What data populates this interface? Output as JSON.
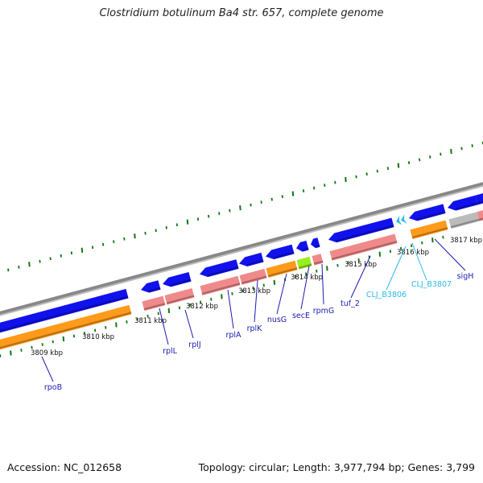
{
  "title": "Clostridium botulinum Ba4 str. 657, complete genome",
  "footer": {
    "accession": "Accession: NC_012658",
    "summary": "Topology: circular; Length: 3,977,794 bp; Genes: 3,799"
  },
  "colors": {
    "cds": "#1111ee",
    "rrna": "#f08a8a",
    "orange": "#ff9a1a",
    "green": "#99ee22",
    "gray": "#bbbbbb",
    "backbone": "#888888",
    "tick": "#117711",
    "gene_label": "#1b1bb0",
    "locus_label": "#2ab8e8"
  },
  "scale_labels": [
    "3809 kbp",
    "3810 kbp",
    "3811 kbp",
    "3812 kbp",
    "3813 kbp",
    "3814 kbp",
    "3815 kbp",
    "3816 kbp",
    "3817 kbp"
  ],
  "gene_labels": [
    {
      "text": "rpoB",
      "kind": "gene"
    },
    {
      "text": "rplL",
      "kind": "gene"
    },
    {
      "text": "rplJ",
      "kind": "gene"
    },
    {
      "text": "rplA",
      "kind": "gene"
    },
    {
      "text": "rplK",
      "kind": "gene"
    },
    {
      "text": "nusG",
      "kind": "gene"
    },
    {
      "text": "secE",
      "kind": "gene"
    },
    {
      "text": "rpmG",
      "kind": "gene"
    },
    {
      "text": "tuf_2",
      "kind": "gene"
    },
    {
      "text": "CLJ_B3806",
      "kind": "locus"
    },
    {
      "text": "CLJ_B3807",
      "kind": "locus"
    },
    {
      "text": "sigH",
      "kind": "gene"
    }
  ]
}
